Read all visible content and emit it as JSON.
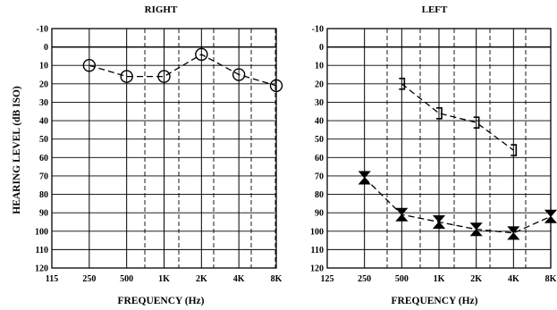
{
  "colors": {
    "ink": "#000000",
    "paper": "#ffffff",
    "dash": "#000000"
  },
  "chart_data": [
    {
      "type": "line",
      "title": "RIGHT",
      "xlabel": "FREQUENCY (Hz)",
      "ylabel": "HEARING LEVEL (dB ISO)",
      "x_tick_labels": [
        "115",
        "250",
        "500",
        "1K",
        "2K",
        "4K",
        "8K"
      ],
      "y_tick_labels": [
        "-10",
        "0",
        "10",
        "20",
        "30",
        "40",
        "50",
        "60",
        "70",
        "80",
        "90",
        "100",
        "110",
        "120"
      ],
      "ylim": [
        -10,
        120
      ],
      "y_inverted": true,
      "grid": true,
      "series": [
        {
          "marker": "circle",
          "x": [
            "250",
            "500",
            "1K",
            "2K",
            "4K",
            "8K"
          ],
          "values": [
            10,
            16,
            16,
            4,
            15,
            21
          ]
        }
      ]
    },
    {
      "type": "line",
      "title": "LEFT",
      "xlabel": "FREQUENCY (Hz)",
      "ylabel": "",
      "x_tick_labels": [
        "125",
        "250",
        "500",
        "1K",
        "2K",
        "4K",
        "8K"
      ],
      "y_tick_labels": [
        "-10",
        "0",
        "10",
        "20",
        "30",
        "40",
        "50",
        "60",
        "70",
        "80",
        "90",
        "100",
        "110",
        "120"
      ],
      "ylim": [
        -10,
        120
      ],
      "y_inverted": true,
      "grid": true,
      "series": [
        {
          "marker": "bracket",
          "x": [
            "500",
            "1K",
            "2K",
            "4K"
          ],
          "values": [
            20,
            36,
            41,
            56
          ]
        },
        {
          "marker": "hourglass",
          "x": [
            "250",
            "500",
            "1K",
            "2K",
            "4K",
            "8K"
          ],
          "values": [
            71,
            91,
            95,
            99,
            101,
            92
          ]
        }
      ]
    }
  ]
}
